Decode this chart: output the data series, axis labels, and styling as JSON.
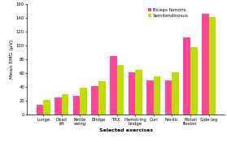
{
  "categories": [
    "Lunge",
    "Dead\nlift",
    "Kettle\nswing",
    "Bridge",
    "TRX",
    "Hamstring\nbridge",
    "Curl",
    "Nordic",
    "Fibtail\nflexion",
    "Side leg"
  ],
  "biceps_femoris": [
    14,
    25,
    27,
    41,
    85,
    62,
    50,
    50,
    112,
    146
  ],
  "semitendinosus": [
    21,
    30,
    39,
    49,
    72,
    65,
    56,
    62,
    98,
    142
  ],
  "color_bf": "#FF4499",
  "color_st": "#BBDD00",
  "legend_bf": "Biceps femoris",
  "legend_st": "Semitendinosus",
  "xlabel": "Selected exercises",
  "ylabel": "Mean EMG (µV)",
  "ylim": [
    0,
    160
  ],
  "yticks": [
    0,
    20,
    40,
    60,
    80,
    100,
    120,
    140,
    160
  ],
  "bar_width": 0.38,
  "axis_fontsize": 4.5,
  "tick_fontsize": 3.8,
  "legend_fontsize": 4.0,
  "background_color": "#ffffff"
}
